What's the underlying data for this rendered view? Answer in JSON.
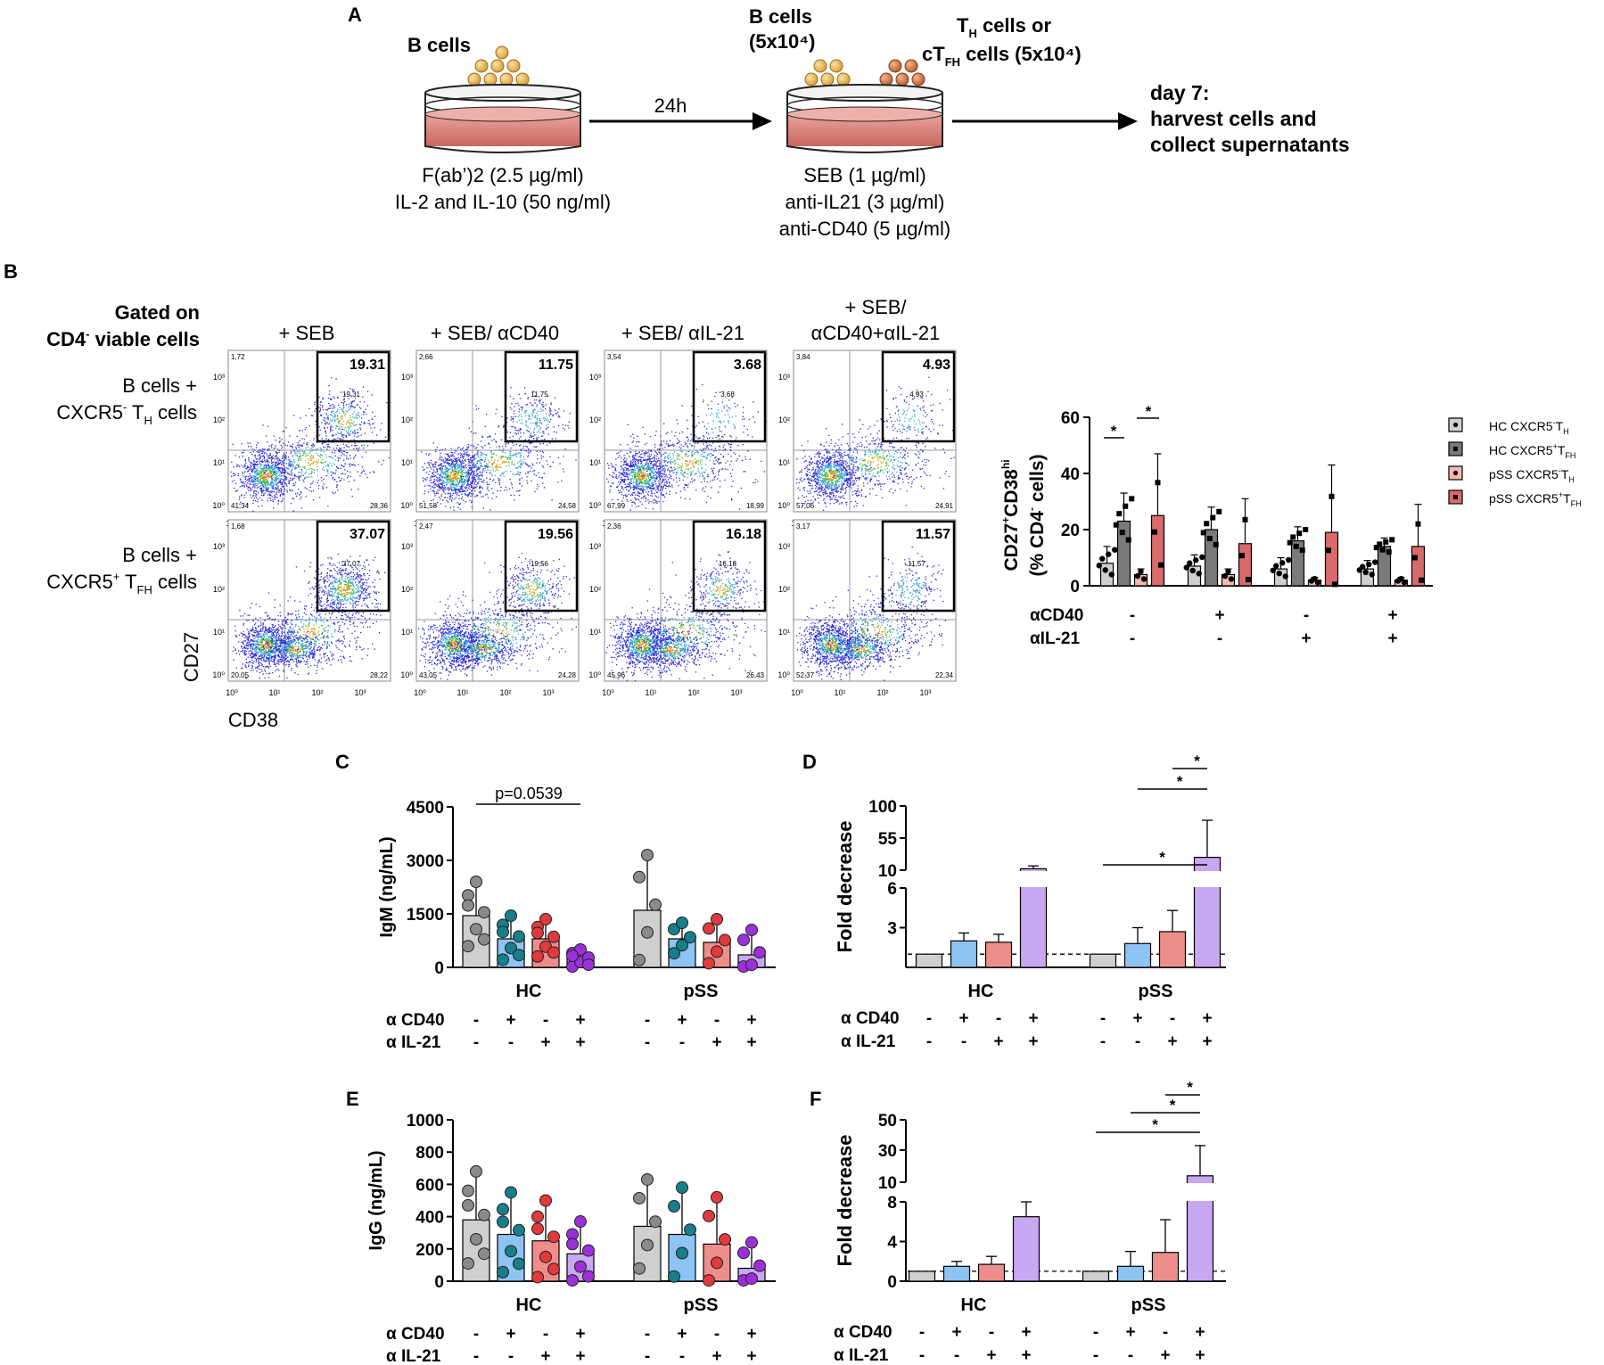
{
  "panel_labels": {
    "a": "A",
    "b": "B",
    "c": "C",
    "d": "D",
    "e": "E",
    "f": "F"
  },
  "colors": {
    "gray": "#cfcfcf",
    "darkgray": "#7a7a7a",
    "blue": "#8ec4f2",
    "red": "#ee8e8a",
    "purple": "#c8a8f2",
    "pink": "#f4b9b5",
    "darkred": "#d96a6a",
    "dot_gray": "#8a8a8a",
    "dot_teal": "#177f8c",
    "dot_red": "#e0393e",
    "dot_purple": "#9b30d9"
  },
  "schematic": {
    "dish1_label": "B cells",
    "arrow1_label": "24h",
    "dish2_label1": "B cells",
    "dish2_label2": "(5x10⁴)",
    "th_label1": "T",
    "th_sub": "H",
    "th_label1b": " cells or",
    "th_label2a": "cT",
    "th_sub2": "FH",
    "th_label2b": " cells (5x10⁴)",
    "cond1_1": "F(ab’)2 (2.5 µg/ml)",
    "cond1_2": "IL-2 and IL-10 (50 ng/ml)",
    "cond2_1": "SEB (1 µg/ml)",
    "cond2_2": "anti-IL21 (3 µg/ml)",
    "cond2_3": "anti-CD40 (5 µg/ml)",
    "day7_1": "day 7:",
    "day7_2": "harvest cells and",
    "day7_3": "collect supernatants"
  },
  "flow": {
    "gated1": "Gated on",
    "gated2a": "CD4",
    "gated2sup": "-",
    "gated2b": " viable cells",
    "columns": [
      "+ SEB",
      "+ SEB/ αCD40",
      "+ SEB/ αIL-21"
    ],
    "col4_line1": "+ SEB/",
    "col4_line2": "αCD40+αIL-21",
    "row1_line1": "B cells +",
    "row1_line2a": "CXCR5",
    "row1_sup": "-",
    "row1_line2b": " T",
    "row1_sub": "H",
    "row1_line2c": " cells",
    "row2_line1": "B cells +",
    "row2_line2a": "CXCR5",
    "row2_sup": "+",
    "row2_line2b": " T",
    "row2_sub": "FH",
    "row2_line2c": " cells",
    "ylabel": "CD27",
    "xlabel": "CD38",
    "x_ticks": [
      "10⁰",
      "10¹",
      "10²",
      "10³"
    ],
    "y_ticks": [
      "10⁰",
      "10¹",
      "10²",
      "10³"
    ],
    "plots": [
      {
        "gate": "19.31",
        "ul": "1,72",
        "ll": "41,34",
        "lr": "28,36",
        "mid": "19,31"
      },
      {
        "gate": "11.75",
        "ul": "2,66",
        "ll": "51,58",
        "lr": "24,58",
        "mid": "11,75"
      },
      {
        "gate": "3.68",
        "ul": "3,54",
        "ll": "67,99",
        "lr": "18,99",
        "mid": "3,68"
      },
      {
        "gate": "4.93",
        "ul": "3,84",
        "ll": "57,06",
        "lr": "24,91",
        "mid": "4,93"
      },
      {
        "gate": "37.07",
        "ul": "1,68",
        "ll": "20,05",
        "lr": "28,22",
        "mid": "37,07"
      },
      {
        "gate": "19.56",
        "ul": "2,47",
        "ll": "43,05",
        "lr": "24,28",
        "mid": "19,56"
      },
      {
        "gate": "16.18",
        "ul": "2,36",
        "ll": "45,96",
        "lr": "26,43",
        "mid": "16,18"
      },
      {
        "gate": "11.57",
        "ul": "3,17",
        "ll": "52,37",
        "lr": "22,34",
        "mid": "11,57"
      }
    ]
  },
  "cd27_legend": [
    {
      "a": "HC CXCR5",
      "sup": "-",
      "b": "T",
      "sub": "H"
    },
    {
      "a": "HC CXCR5",
      "sup": "+",
      "b": "T",
      "sub": "FH"
    },
    {
      "a": "pSS CXCR5",
      "sup": "-",
      "b": "T",
      "sub": "H"
    },
    {
      "a": "pSS CXCR5",
      "sup": "+",
      "b": "T",
      "sub": "FH"
    }
  ],
  "cd27_ylabel1a": "CD27",
  "cd27_ylabel1sup": "+",
  "cd27_ylabel1b": "CD38",
  "cd27_ylabel1sup2": "hi",
  "cd27_ylabel2a": "(% CD4",
  "cd27_ylabel2sup": "-",
  "cd27_ylabel2b": " cells)",
  "signs": {
    "acd40": "αCD40",
    "ail21": "αIL-21",
    "acd40_sp": "α CD40",
    "ail21_sp": "α IL-21",
    "hc": "HC",
    "pss": "pSS",
    "pval": "p=0.0539",
    "star": "*"
  },
  "chart_data": [
    {
      "type": "bar",
      "panel": "B",
      "categories": [
        "- / -",
        "+ / -",
        "- / +",
        "+ / +"
      ],
      "series": [
        {
          "name": "HC CXCR5-TH",
          "values": [
            8,
            7,
            6,
            6
          ],
          "errors": [
            6,
            4,
            4,
            3
          ]
        },
        {
          "name": "HC CXCR5+TFH",
          "values": [
            23,
            20,
            16,
            14
          ],
          "errors": [
            10,
            8,
            5,
            3
          ]
        },
        {
          "name": "pSS CXCR5-TH",
          "values": [
            4,
            4,
            2,
            2
          ],
          "errors": [
            2,
            2,
            1,
            1
          ]
        },
        {
          "name": "pSS CXCR5+TFH",
          "values": [
            25,
            15,
            19,
            14
          ],
          "errors": [
            22,
            16,
            24,
            15
          ]
        }
      ],
      "ylabel": "CD27+CD38hi (% CD4- cells)",
      "ylim": [
        0,
        60
      ],
      "yticks": [
        0,
        20,
        40,
        60
      ],
      "acd40": [
        "-",
        "+",
        "-",
        "+"
      ],
      "ail21": [
        "-",
        "-",
        "+",
        "+"
      ]
    },
    {
      "type": "bar",
      "panel": "C",
      "groups": [
        "HC",
        "pSS"
      ],
      "categories": [
        "-/-",
        "+/-",
        "-/+",
        "+/+"
      ],
      "series": [
        {
          "name": "HC",
          "values": [
            1450,
            800,
            800,
            250
          ],
          "errors": [
            950,
            650,
            550,
            250
          ]
        },
        {
          "name": "pSS",
          "values": [
            1600,
            800,
            700,
            350
          ],
          "errors": [
            1550,
            450,
            650,
            700
          ]
        }
      ],
      "ylabel": "IgM (ng/mL)",
      "ylim": [
        0,
        4500
      ],
      "yticks": [
        0,
        1500,
        3000,
        4500
      ],
      "annotation": "p=0.0539",
      "acd40": [
        "-",
        "+",
        "-",
        "+"
      ],
      "ail21": [
        "-",
        "-",
        "+",
        "+"
      ]
    },
    {
      "type": "bar",
      "panel": "D",
      "groups": [
        "HC",
        "pSS"
      ],
      "categories": [
        "-/-",
        "+/-",
        "-/+",
        "+/+"
      ],
      "series": [
        {
          "name": "HC",
          "values": [
            1,
            2.0,
            1.9,
            12
          ],
          "errors": [
            0,
            0.6,
            0.6,
            4
          ]
        },
        {
          "name": "pSS",
          "values": [
            1,
            1.8,
            2.7,
            28
          ],
          "errors": [
            0,
            1.2,
            1.6,
            52
          ]
        }
      ],
      "ylabel": "Fold decrease",
      "ylim": [
        0,
        100
      ],
      "yticks": [
        3,
        6,
        10,
        55,
        100
      ],
      "broken_axis": true,
      "reference_line": 1,
      "acd40": [
        "-",
        "+",
        "-",
        "+"
      ],
      "ail21": [
        "-",
        "-",
        "+",
        "+"
      ]
    },
    {
      "type": "bar",
      "panel": "E",
      "groups": [
        "HC",
        "pSS"
      ],
      "categories": [
        "-/-",
        "+/-",
        "-/+",
        "+/+"
      ],
      "series": [
        {
          "name": "HC",
          "values": [
            380,
            290,
            250,
            170
          ],
          "errors": [
            300,
            260,
            250,
            200
          ]
        },
        {
          "name": "pSS",
          "values": [
            340,
            290,
            230,
            80
          ],
          "errors": [
            290,
            290,
            290,
            160
          ]
        }
      ],
      "ylabel": "IgG (ng/mL)",
      "ylim": [
        0,
        1000
      ],
      "yticks": [
        0,
        200,
        400,
        600,
        800,
        1000
      ],
      "acd40": [
        "-",
        "+",
        "-",
        "+"
      ],
      "ail21": [
        "-",
        "-",
        "+",
        "+"
      ]
    },
    {
      "type": "bar",
      "panel": "F",
      "groups": [
        "HC",
        "pSS"
      ],
      "categories": [
        "-/-",
        "+/-",
        "-/+",
        "+/+"
      ],
      "series": [
        {
          "name": "HC",
          "values": [
            1,
            1.5,
            1.7,
            6.5
          ],
          "errors": [
            0,
            0.5,
            0.8,
            1.5
          ]
        },
        {
          "name": "pSS",
          "values": [
            1,
            1.5,
            2.9,
            14
          ],
          "errors": [
            0,
            1.5,
            3.3,
            19
          ]
        }
      ],
      "ylabel": "Fold decrease",
      "ylim": [
        0,
        50
      ],
      "yticks": [
        0,
        4,
        8,
        10,
        30,
        50
      ],
      "broken_axis": true,
      "reference_line": 1,
      "acd40": [
        "-",
        "+",
        "-",
        "+"
      ],
      "ail21": [
        "-",
        "-",
        "+",
        "+"
      ]
    }
  ]
}
